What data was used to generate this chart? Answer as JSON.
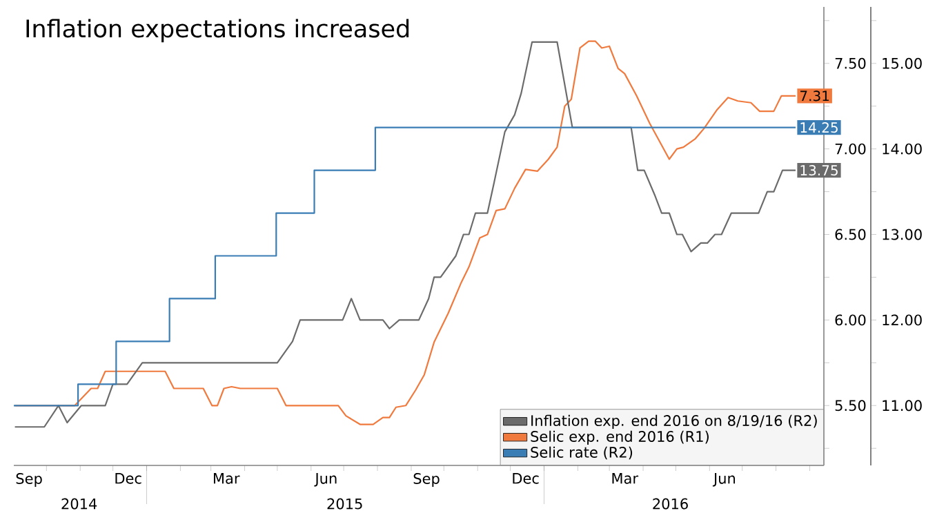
{
  "chart_data": {
    "type": "line",
    "title": "Inflation expectations increased",
    "xlim": [
      "2014-09-01",
      "2016-09-14"
    ],
    "x2lim": [
      "2014-09-01",
      "2016-09-18"
    ],
    "xticks": [
      {
        "value": "2014-09-15",
        "label": "Sep"
      },
      {
        "value": "2014-12-15",
        "label": "Dec"
      },
      {
        "value": "2015-03-15",
        "label": "Mar"
      },
      {
        "value": "2015-06-15",
        "label": "Jun"
      },
      {
        "value": "2015-09-15",
        "label": "Sep"
      },
      {
        "value": "2015-12-15",
        "label": "Dec"
      },
      {
        "value": "2016-03-15",
        "label": "Mar"
      },
      {
        "value": "2016-06-15",
        "label": "Jun"
      },
      {
        "value": "2014-10-01",
        "label": null
      },
      {
        "value": "2014-11-01",
        "label": null
      },
      {
        "value": "2014-12-01",
        "label": null
      },
      {
        "value": "2015-01-01",
        "label": null
      },
      {
        "value": "2015-02-01",
        "label": null
      },
      {
        "value": "2015-03-01",
        "label": null
      },
      {
        "value": "2015-04-01",
        "label": null
      },
      {
        "value": "2015-05-01",
        "label": null
      },
      {
        "value": "2015-06-01",
        "label": null
      },
      {
        "value": "2015-07-01",
        "label": null
      },
      {
        "value": "2015-08-01",
        "label": null
      },
      {
        "value": "2015-09-01",
        "label": null
      },
      {
        "value": "2015-10-01",
        "label": null
      },
      {
        "value": "2015-11-01",
        "label": null
      },
      {
        "value": "2015-12-01",
        "label": null
      },
      {
        "value": "2016-01-01",
        "label": null
      },
      {
        "value": "2016-02-01",
        "label": null
      },
      {
        "value": "2016-03-01",
        "label": null
      },
      {
        "value": "2016-04-01",
        "label": null
      },
      {
        "value": "2016-05-01",
        "label": null
      },
      {
        "value": "2016-06-01",
        "label": null
      },
      {
        "value": "2016-07-01",
        "label": null
      },
      {
        "value": "2016-08-01",
        "label": null
      },
      {
        "value": "2016-09-01",
        "label": null
      }
    ],
    "x2ticks": [
      {
        "value": "2014-10-31",
        "label": "2014"
      },
      {
        "value": "2015-07-02",
        "label": "2015"
      },
      {
        "value": "2016-04-26",
        "label": "2016"
      },
      {
        "value": "2015-01-01",
        "label": null
      },
      {
        "value": "2016-01-01",
        "label": null
      }
    ],
    "ylim": [
      5.15,
      7.83
    ],
    "yticks": [
      {
        "value": 5.5,
        "label": "5.50"
      },
      {
        "value": 6,
        "label": "6.00"
      },
      {
        "value": 6.5,
        "label": "6.50"
      },
      {
        "value": 7,
        "label": "7.00"
      },
      {
        "value": 7.5,
        "label": "7.50"
      },
      {
        "value": 5.25,
        "label": null
      },
      {
        "value": 5.75,
        "label": null
      },
      {
        "value": 6.25,
        "label": null
      },
      {
        "value": 6.75,
        "label": null
      },
      {
        "value": 7.25,
        "label": null
      },
      {
        "value": 7.75,
        "label": null
      }
    ],
    "y2lim": [
      10.3,
      15.66
    ],
    "y2ticks": [
      {
        "value": 11,
        "label": "11.00"
      },
      {
        "value": 12,
        "label": "12.00"
      },
      {
        "value": 13,
        "label": "13.00"
      },
      {
        "value": 14,
        "label": "14.00"
      },
      {
        "value": 15,
        "label": "15.00"
      },
      {
        "value": 10.5,
        "label": null
      },
      {
        "value": 11.5,
        "label": null
      },
      {
        "value": 12.5,
        "label": null
      },
      {
        "value": 13.5,
        "label": null
      },
      {
        "value": 14.5,
        "label": null
      },
      {
        "value": 15.5,
        "label": null
      }
    ],
    "legend": "bottom right",
    "series": [
      {
        "name": "Inflation exp. end 2016 on 8/19/16 (R2)",
        "color": "#6b6b6b",
        "axis": "y2",
        "x": [
          "2014-09-02",
          "2014-09-29",
          "2014-10-12",
          "2014-10-20",
          "2014-11-02",
          "2014-11-24",
          "2014-12-01",
          "2014-12-14",
          "2014-12-28",
          "2015-05-01",
          "2015-05-15",
          "2015-05-22",
          "2015-06-30",
          "2015-07-08",
          "2015-07-16",
          "2015-08-06",
          "2015-08-12",
          "2015-08-21",
          "2015-09-08",
          "2015-09-17",
          "2015-09-22",
          "2015-09-28",
          "2015-10-12",
          "2015-10-19",
          "2015-10-24",
          "2015-10-30",
          "2015-11-10",
          "2015-11-16",
          "2015-11-26",
          "2015-12-05",
          "2015-12-11",
          "2015-12-21",
          "2016-01-13",
          "2016-01-27",
          "2016-03-21",
          "2016-03-27",
          "2016-04-02",
          "2016-04-12",
          "2016-04-18",
          "2016-04-25",
          "2016-05-02",
          "2016-05-07",
          "2016-05-15",
          "2016-05-24",
          "2016-05-30",
          "2016-06-06",
          "2016-06-12",
          "2016-06-21",
          "2016-07-16",
          "2016-07-24",
          "2016-07-30",
          "2016-08-07",
          "2016-08-19"
        ],
        "values": [
          10.75,
          10.75,
          11.0,
          10.8,
          11.0,
          11.0,
          11.25,
          11.25,
          11.5,
          11.5,
          11.75,
          12.0,
          12.0,
          12.25,
          12.0,
          12.0,
          11.9,
          12.0,
          12.0,
          12.25,
          12.5,
          12.5,
          12.75,
          13.0,
          13.0,
          13.25,
          13.25,
          13.6,
          14.2,
          14.4,
          14.65,
          15.25,
          15.25,
          14.25,
          14.25,
          13.75,
          13.75,
          13.45,
          13.25,
          13.25,
          13.0,
          13.0,
          12.8,
          12.9,
          12.9,
          13.0,
          13.0,
          13.25,
          13.25,
          13.5,
          13.5,
          13.75,
          13.75
        ],
        "value_labels": [
          null,
          null,
          null,
          null,
          null,
          null,
          null,
          null,
          null,
          null,
          null,
          null,
          null,
          null,
          null,
          null,
          null,
          null,
          null,
          null,
          null,
          null,
          null,
          null,
          null,
          null,
          null,
          null,
          null,
          null,
          null,
          null,
          null,
          null,
          null,
          null,
          null,
          null,
          null,
          null,
          null,
          null,
          null,
          null,
          null,
          null,
          null,
          null,
          null,
          null,
          null,
          null,
          "13.75"
        ]
      },
      {
        "name": "Selic exp. end 2016 (R1)",
        "color": "#f07a3e",
        "x": [
          "2014-09-02",
          "2014-10-27",
          "2014-11-11",
          "2014-11-17",
          "2014-11-24",
          "2015-01-18",
          "2015-01-26",
          "2015-02-22",
          "2015-03-02",
          "2015-03-07",
          "2015-03-13",
          "2015-03-20",
          "2015-03-28",
          "2015-05-01",
          "2015-05-09",
          "2015-06-26",
          "2015-07-03",
          "2015-07-16",
          "2015-07-28",
          "2015-08-06",
          "2015-08-12",
          "2015-08-18",
          "2015-08-27",
          "2015-09-05",
          "2015-09-13",
          "2015-09-22",
          "2015-10-05",
          "2015-10-17",
          "2015-10-24",
          "2015-11-03",
          "2015-11-10",
          "2015-11-18",
          "2015-11-26",
          "2015-12-05",
          "2015-12-15",
          "2015-12-26",
          "2016-01-05",
          "2016-01-13",
          "2016-01-20",
          "2016-01-26",
          "2016-02-03",
          "2016-02-11",
          "2016-02-17",
          "2016-02-23",
          "2016-03-01",
          "2016-03-09",
          "2016-03-15",
          "2016-03-26",
          "2016-04-07",
          "2016-04-25",
          "2016-05-02",
          "2016-05-08",
          "2016-05-19",
          "2016-05-27",
          "2016-06-08",
          "2016-06-18",
          "2016-06-27",
          "2016-07-09",
          "2016-07-17",
          "2016-07-30",
          "2016-08-06",
          "2016-08-19"
        ],
        "values": [
          5.5,
          5.5,
          5.6,
          5.6,
          5.7,
          5.7,
          5.6,
          5.6,
          5.5,
          5.5,
          5.6,
          5.61,
          5.6,
          5.6,
          5.5,
          5.5,
          5.44,
          5.39,
          5.39,
          5.43,
          5.43,
          5.49,
          5.5,
          5.59,
          5.68,
          5.87,
          6.04,
          6.22,
          6.31,
          6.48,
          6.5,
          6.64,
          6.65,
          6.77,
          6.88,
          6.87,
          6.94,
          7.01,
          7.25,
          7.29,
          7.59,
          7.63,
          7.63,
          7.59,
          7.6,
          7.47,
          7.44,
          7.31,
          7.15,
          6.94,
          7.0,
          7.01,
          7.06,
          7.12,
          7.23,
          7.3,
          7.28,
          7.27,
          7.22,
          7.22,
          7.31,
          7.31
        ],
        "value_labels": [
          null,
          null,
          null,
          null,
          null,
          null,
          null,
          null,
          null,
          null,
          null,
          null,
          null,
          null,
          null,
          null,
          null,
          null,
          null,
          null,
          null,
          null,
          null,
          null,
          null,
          null,
          null,
          null,
          null,
          null,
          null,
          null,
          null,
          null,
          null,
          null,
          null,
          null,
          null,
          null,
          null,
          null,
          null,
          null,
          null,
          null,
          null,
          null,
          null,
          null,
          null,
          null,
          null,
          null,
          null,
          null,
          null,
          null,
          null,
          null,
          null,
          "7.31"
        ]
      },
      {
        "name": "Selic rate (R2)",
        "color": "#3a7db5",
        "axis": "y2",
        "type": "step",
        "x": [
          "2014-09-01",
          "2014-10-30",
          "2014-12-04",
          "2015-01-22",
          "2015-03-05",
          "2015-04-30",
          "2015-06-04",
          "2015-07-30",
          "2016-08-19"
        ],
        "values": [
          11.0,
          11.25,
          11.75,
          12.25,
          12.75,
          13.25,
          13.75,
          14.25,
          14.25
        ],
        "value_labels": [
          null,
          null,
          null,
          null,
          null,
          null,
          null,
          null,
          "14.25"
        ]
      }
    ]
  }
}
